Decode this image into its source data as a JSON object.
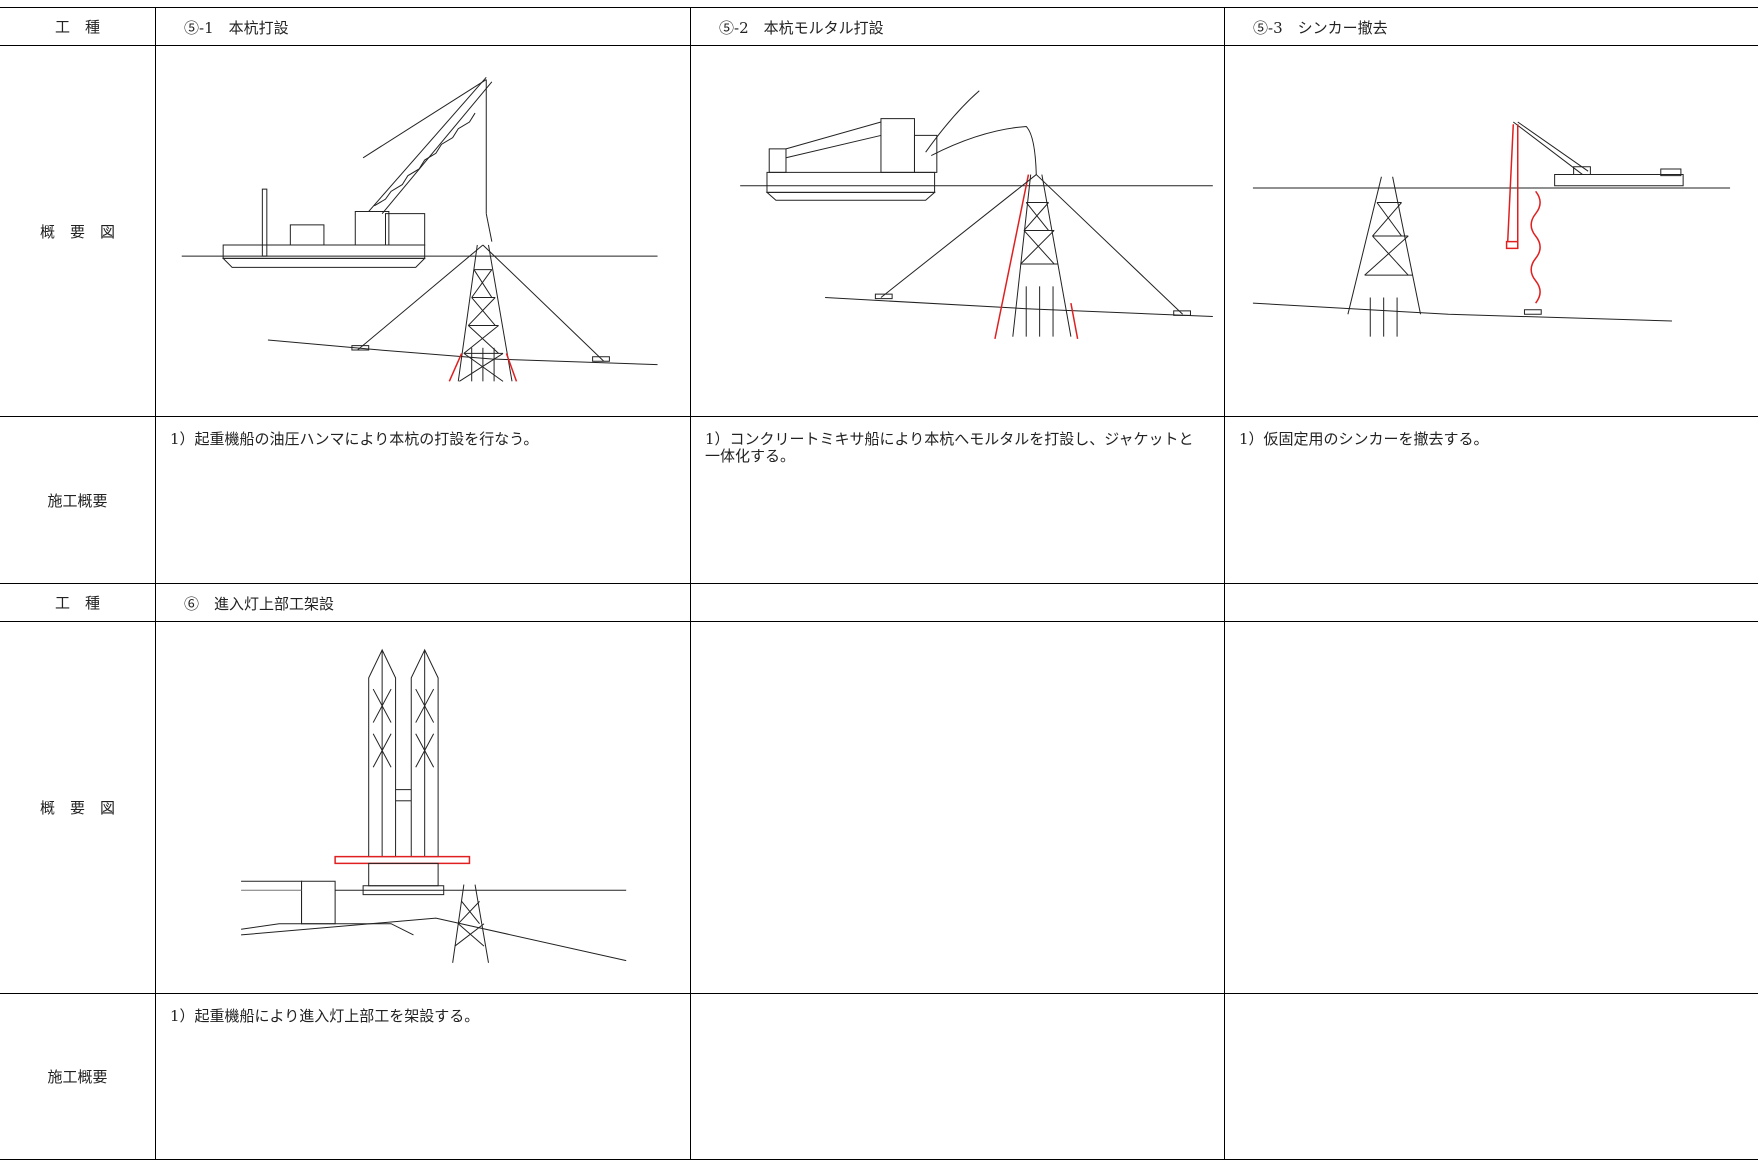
{
  "table": {
    "sections": [
      {
        "header": {
          "label": "工　種",
          "cells": [
            "⑤-1　本杭打設",
            "⑤-2　本杭モルタル打設",
            "⑤-3　シンカー撤去"
          ]
        },
        "diagram_label": "概　要　図",
        "summary_label": "施工概要",
        "summaries": [
          "1）起重機船の油圧ハンマにより本杭の打設を行なう。",
          "1）コンクリートミキサ船により本杭へモルタルを打設し、ジャケットと一体化する。",
          "1）仮固定用のシンカーを撤去する。"
        ]
      },
      {
        "header": {
          "label": "工　種",
          "cells": [
            "⑥　進入灯上部工架設"
          ]
        },
        "diagram_label": "概　要　図",
        "summary_label": "施工概要",
        "summaries": [
          "1）起重機船により進入灯上部工を架設する。"
        ]
      }
    ]
  }
}
